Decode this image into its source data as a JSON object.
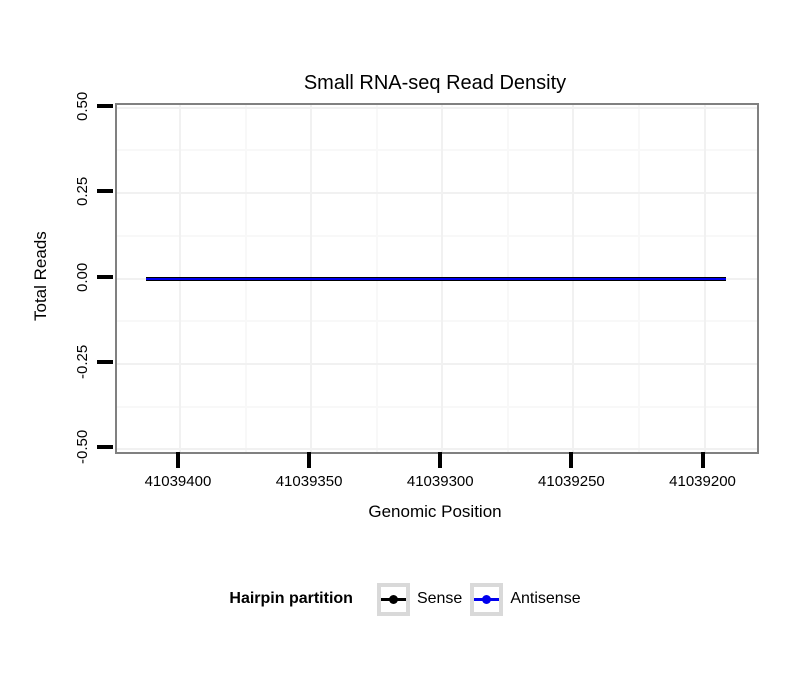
{
  "title": "Small RNA-seq Read Density",
  "colors": {
    "background": "#ffffff",
    "panel_border": "#808080",
    "grid_major": "#f1f1f1",
    "grid_minor": "#f8f8f8",
    "tick": "#000000",
    "legend_key_border": "#d9d9d9",
    "sense": "#000000",
    "antisense": "#0000ee"
  },
  "chart_data": {
    "type": "line",
    "title": "Small RNA-seq Read Density",
    "xlabel": "Genomic Position",
    "ylabel": "Total Reads",
    "x_axis": {
      "reversed": true,
      "value_at_left_edge": 41039424,
      "value_at_right_edge": 41039180,
      "ticks": [
        41039400,
        41039350,
        41039300,
        41039250,
        41039200
      ],
      "tick_labels": [
        "41039400",
        "41039350",
        "41039300",
        "41039250",
        "41039200"
      ],
      "minor_ticks": [
        41039375,
        41039325,
        41039275,
        41039225
      ]
    },
    "y_axis": {
      "value_at_top_edge": 0.508,
      "value_at_bottom_edge": -0.508,
      "ticks": [
        0.5,
        0.25,
        0.0,
        -0.25,
        -0.5
      ],
      "tick_labels": [
        "0.50",
        "0.25",
        "0.00",
        "-0.25",
        "-0.50"
      ],
      "minor_ticks": [
        0.375,
        0.125,
        -0.125,
        -0.375
      ]
    },
    "grid": {
      "major": true,
      "minor": true
    },
    "series": [
      {
        "name": "Sense",
        "color": "#000000",
        "x": [
          41039413,
          41039192
        ],
        "y": [
          0,
          0
        ],
        "thickness": 4
      },
      {
        "name": "Antisense",
        "color": "#0000ee",
        "x": [
          41039413,
          41039192
        ],
        "y": [
          0,
          0
        ],
        "thickness": 2
      }
    ],
    "legend": {
      "title": "Hairpin partition",
      "position": "bottom",
      "entries": [
        {
          "label": "Sense",
          "color": "#000000"
        },
        {
          "label": "Antisense",
          "color": "#0000ee"
        }
      ]
    }
  }
}
